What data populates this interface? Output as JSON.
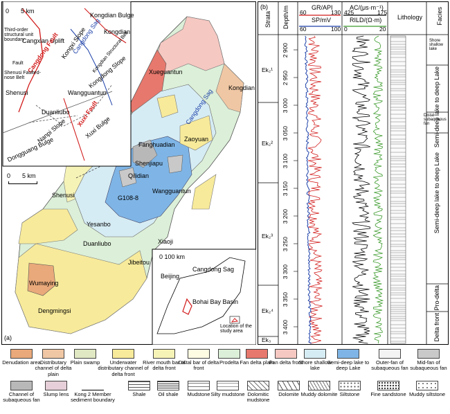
{
  "panel_a": {
    "label": "(a)",
    "inset_top": {
      "scale": "5 km",
      "scale_zero": "0",
      "legend_boundary": "Third-order structural unit boundary",
      "legend_fault": "Fault",
      "units": [
        "Kongdian Bulge",
        "Kongdian",
        "Cangxian Uplift",
        "Cangdong Fault",
        "Kongxi Slope",
        "Cangdong Sag",
        "Kongdian Structural Belt",
        "Kongdong Slope",
        "Shenusi Faulted-nose Belt",
        "Shenusi",
        "Wangguantun",
        "Duanliubo",
        "Nanpi Slope",
        "Xuxi Fault",
        "Xuxi Bulge",
        "Dongguang Bulge"
      ]
    },
    "main_map": {
      "scale": "5 km",
      "scale_zero": "0",
      "places": [
        "Xueguantun",
        "Kongdian",
        "Cangdong Sag",
        "Zaoyuan",
        "Fanghuadian",
        "Shenjiapu",
        "Qilidian",
        "Wangguantun",
        "G108-8",
        "Shenusi",
        "Yesanbo",
        "Duanliubo",
        "Xiaoji",
        "Jibeitou",
        "Wumaying",
        "Dengmingsi"
      ]
    },
    "locator": {
      "scale": "0   100 km",
      "places": [
        "Beijing",
        "Cangdong Sag",
        "Bohai Bay Basin"
      ],
      "legend": "Location of the study area"
    }
  },
  "panel_b": {
    "label": "(b)",
    "headers": {
      "strata": "Strata",
      "depth": "Depth/m",
      "gr": "GR/API",
      "gr_min": "60",
      "gr_max": "130",
      "sp": "SP/mV",
      "sp_min": "60",
      "sp_max": "100",
      "ac": "AC/(μs·m⁻¹)",
      "ac_min": "425",
      "ac_max": "175",
      "rild": "RILD/(Ω·m)",
      "rild_min": "0",
      "rild_max": "20",
      "lithology": "Lithology",
      "facies": "Facies"
    },
    "depths": [
      "2 900",
      "2 950",
      "3 000",
      "3 050",
      "3 100",
      "3 150",
      "3 200",
      "3 250",
      "3 300",
      "3 350",
      "3 400"
    ],
    "strata": [
      "Ek₂¹",
      "Ek₂²",
      "Ek₂³",
      "Ek₂⁴",
      "Ek₃"
    ],
    "facies": [
      "Shore shallow lake",
      "Semi-deep lake to deep Lake",
      "Distal subaqueous fan",
      "Semi-deep lake to deep Lake",
      "Pro-delta",
      "Delta front"
    ]
  },
  "legend": [
    {
      "label": "Denudation area",
      "color": "#e9a97a"
    },
    {
      "label": "Distributary channel of delta plain",
      "color": "#f0c7a4"
    },
    {
      "label": "Plain swamp",
      "color": "#dfe8c2"
    },
    {
      "label": "Underwater distributary channel of delta front",
      "color": "#f7ea9a"
    },
    {
      "label": "River mouth bar of delta front",
      "color": "#f6f3b7"
    },
    {
      "label": "Distal bar of delta front",
      "color": "#fdfbe2"
    },
    {
      "label": "Prodelta",
      "color": "#dcefd8"
    },
    {
      "label": "Fan delta plain",
      "color": "#e7786d"
    },
    {
      "label": "Fan delta front",
      "color": "#f6c8c2"
    },
    {
      "label": "Shore shallow lake",
      "color": "#d6ecf4"
    },
    {
      "label": "Semi-deep lake to deep Lake",
      "color": "#7fb5e6"
    },
    {
      "label": "Outer-fan of subaqueous fan",
      "color": "#f3f3f3"
    },
    {
      "label": "Mid-fan of subaqueous fan",
      "color": "#c9c9c9"
    },
    {
      "label": "Channel of subaqueous fan",
      "color": "#b8b8b8"
    },
    {
      "label": "Slump lens",
      "color": "#e6cfd8"
    },
    {
      "label": "Kong 2 Member sediment boundary",
      "color": "#ffffff"
    },
    {
      "label": "Shale",
      "color": "#ffffff"
    },
    {
      "label": "Oil shale",
      "color": "#ffffff"
    },
    {
      "label": "Mudstone",
      "color": "#ffffff"
    },
    {
      "label": "Silty mudstone",
      "color": "#ffffff"
    },
    {
      "label": "Dolomitic mudstone",
      "color": "#ffffff"
    },
    {
      "label": "Dolomite",
      "color": "#ffffff"
    },
    {
      "label": "Muddy dolomite",
      "color": "#ffffff"
    },
    {
      "label": "Siltstone",
      "color": "#ffffff"
    },
    {
      "label": "Fine sandstone",
      "color": "#ffffff"
    },
    {
      "label": "Muddy siltstone",
      "color": "#ffffff"
    }
  ]
}
